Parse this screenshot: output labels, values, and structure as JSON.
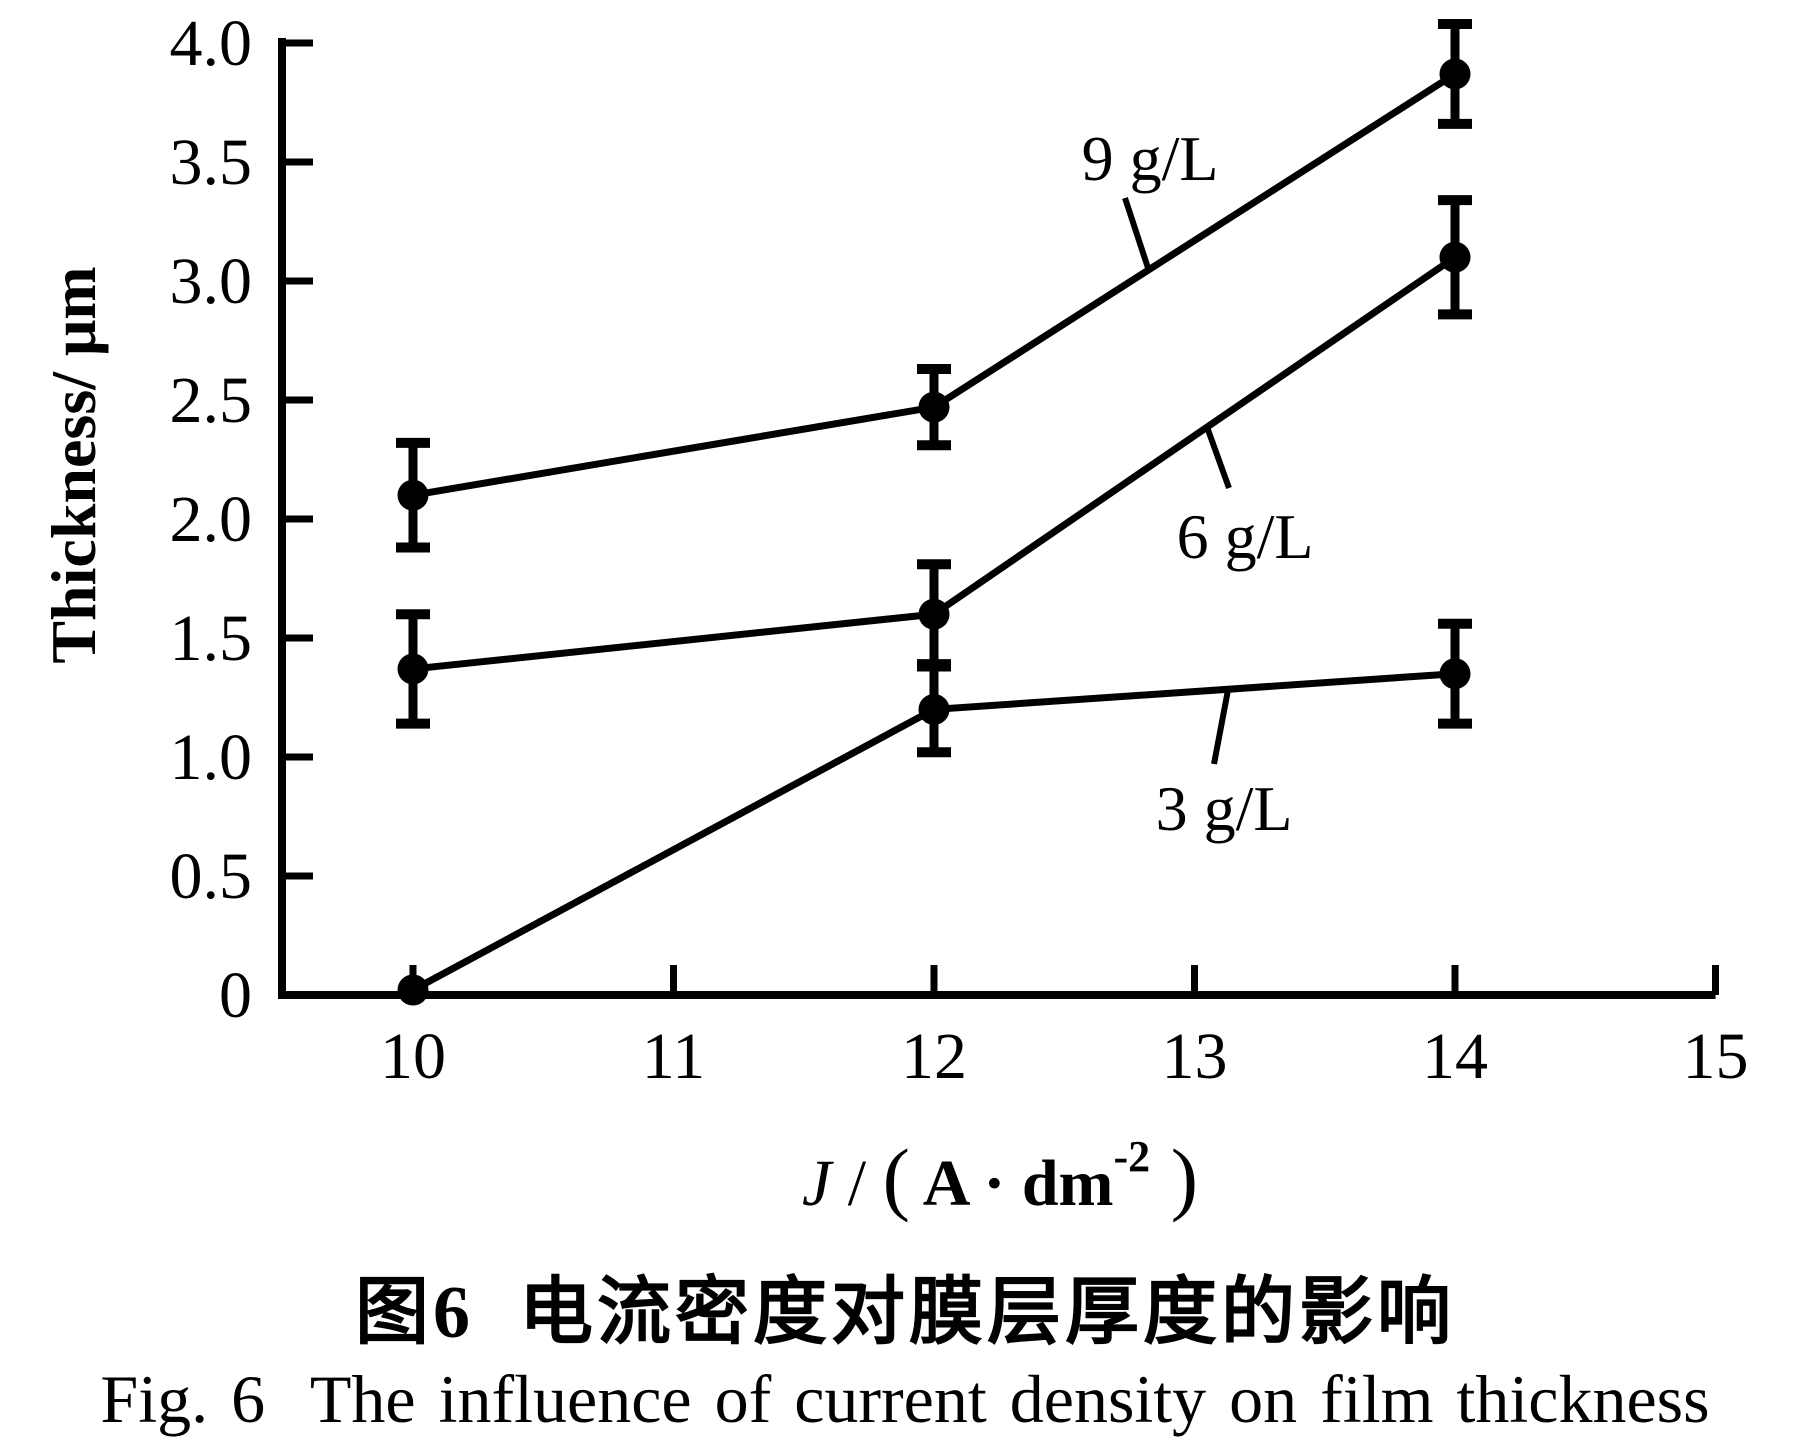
{
  "figure": {
    "caption_zh": "图6  电流密度对膜层厚度的影响",
    "caption_en": "Fig. 6  The influence of current density on film thickness"
  },
  "chart_data": {
    "type": "line",
    "title": "",
    "xlabel": "J/(A·dm⁻²)",
    "xlabel_parts": {
      "var": "J",
      "sep": "/",
      "open_paren": "(",
      "unit_base": "A · dm",
      "unit_sup": "-2",
      "close_paren": ")"
    },
    "ylabel": "Thickness/ μm",
    "x": [
      10,
      12,
      14
    ],
    "series": [
      {
        "name": "9 g/L",
        "values": [
          2.1,
          2.47,
          3.87
        ],
        "errors": [
          0.22,
          0.16,
          0.21
        ]
      },
      {
        "name": "6 g/L",
        "values": [
          1.37,
          1.6,
          3.1
        ],
        "errors": [
          0.23,
          0.21,
          0.24
        ]
      },
      {
        "name": "3 g/L",
        "values": [
          0.0,
          1.2,
          1.35
        ],
        "errors": [
          0.0,
          0.18,
          0.21
        ]
      }
    ],
    "xlim": [
      9.5,
      15
    ],
    "ylim": [
      0,
      4
    ],
    "x_ticks": [
      10,
      11,
      12,
      13,
      14,
      15
    ],
    "x_tick_labels": [
      "10",
      "11",
      "12",
      "13",
      "14",
      "15"
    ],
    "y_ticks": [
      0,
      0.5,
      1.0,
      1.5,
      2.0,
      2.5,
      3.0,
      3.5,
      4.0
    ],
    "y_tick_labels": [
      "0",
      "0.5",
      "1.0",
      "1.5",
      "2.0",
      "2.5",
      "3.0",
      "3.5",
      "4.0"
    ],
    "grid": false,
    "legend_position": "inline-annotations",
    "marker": "filled-circle",
    "error_bars": true,
    "line_color": "#000000",
    "background": "#ffffff"
  }
}
